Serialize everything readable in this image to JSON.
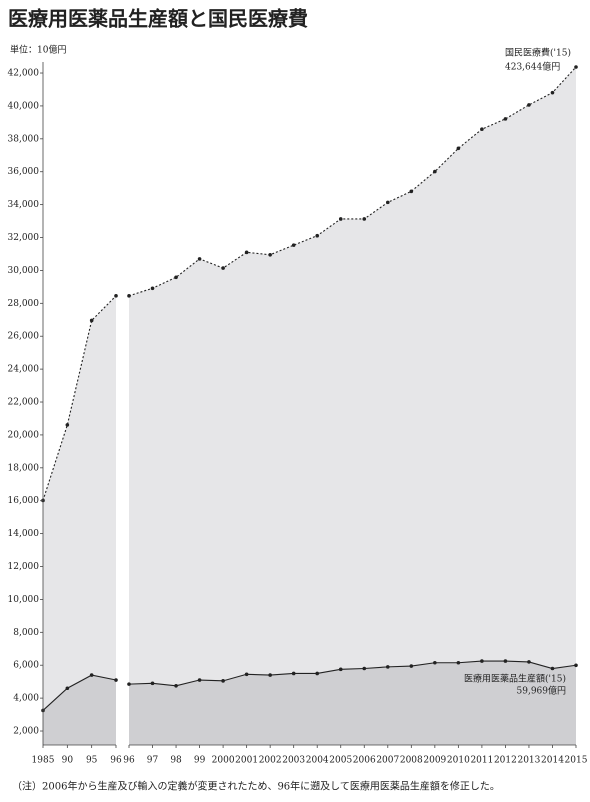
{
  "title": "医療用医薬品生産額と国民医療費",
  "unit_label": "単位：10億円",
  "note": "（注）2006年から生産及び輸入の定義が変更されたため、96年に遡及して医療用医薬品生産額を修正した。",
  "chart_data": [
    {
      "type": "area",
      "categories": [
        "1985",
        "90",
        "95",
        "96"
      ],
      "series": [
        {
          "color": "#222222",
          "fill": "#e6e6e8",
          "line_style": "dotted",
          "values": [
            16016,
            20607,
            26958,
            28454
          ]
        },
        {
          "color": "#222222",
          "fill": "#cfcfd2",
          "line_style": "solid",
          "values": [
            3250,
            4600,
            5400,
            5100
          ]
        }
      ],
      "ylim": [
        1150,
        42670
      ],
      "yticks": [
        {
          "value": 2000,
          "label": "2,000"
        },
        {
          "value": 4000,
          "label": "4,000"
        },
        {
          "value": 6000,
          "label": "6,000"
        },
        {
          "value": 8000,
          "label": "8,000"
        },
        {
          "value": 10000,
          "label": "10,000"
        },
        {
          "value": 12000,
          "label": "12,000"
        },
        {
          "value": 14000,
          "label": "14,000"
        },
        {
          "value": 16000,
          "label": "16,000"
        },
        {
          "value": 18000,
          "label": "18,000"
        },
        {
          "value": 20000,
          "label": "20,000"
        },
        {
          "value": 22000,
          "label": "22,000"
        },
        {
          "value": 24000,
          "label": "24,000"
        },
        {
          "value": 26000,
          "label": "26,000"
        },
        {
          "value": 28000,
          "label": "28,000"
        },
        {
          "value": 30000,
          "label": "30,000"
        },
        {
          "value": 32000,
          "label": "32,000"
        },
        {
          "value": 34000,
          "label": "34,000"
        },
        {
          "value": 36000,
          "label": "36,000"
        },
        {
          "value": 38000,
          "label": "38,000"
        },
        {
          "value": 40000,
          "label": "40,000"
        },
        {
          "value": 42000,
          "label": "42,000"
        }
      ]
    },
    {
      "type": "area",
      "categories": [
        "96",
        "97",
        "98",
        "99",
        "2000",
        "2001",
        "2002",
        "2003",
        "2004",
        "2005",
        "2006",
        "2007",
        "2008",
        "2009",
        "2010",
        "2011",
        "2012",
        "2013",
        "2014",
        "2015"
      ],
      "series": [
        {
          "color": "#222222",
          "fill": "#e6e6e8",
          "line_style": "dotted",
          "values": [
            28454,
            28915,
            29582,
            30702,
            30142,
            31100,
            30951,
            31538,
            32111,
            33129,
            33128,
            34136,
            34808,
            36007,
            37420,
            38585,
            39212,
            40061,
            40807,
            42364
          ]
        },
        {
          "color": "#222222",
          "fill": "#cfcfd2",
          "line_style": "solid",
          "values": [
            4850,
            4900,
            4750,
            5100,
            5050,
            5450,
            5400,
            5500,
            5500,
            5750,
            5800,
            5900,
            5950,
            6150,
            6150,
            6250,
            6250,
            6200,
            5800,
            5997
          ]
        }
      ],
      "ylim": [
        1150,
        42670
      ],
      "annotations": [
        "国民医療費('15)",
        "423,644億円",
        "医療用医薬品生産額('15)",
        "59,969億円"
      ]
    }
  ]
}
